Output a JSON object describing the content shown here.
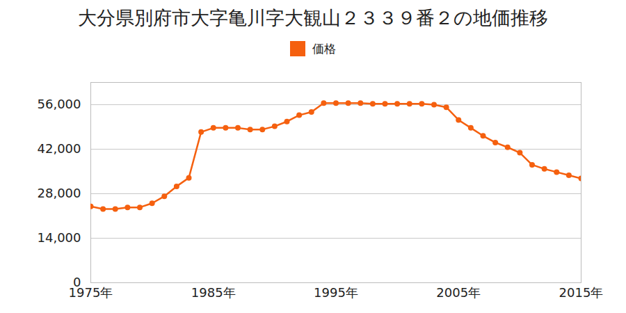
{
  "chart_data": {
    "type": "line",
    "title": "大分県別府市大字亀川字大観山２３３９番２の地価推移",
    "x": [
      1975,
      1976,
      1977,
      1978,
      1979,
      1980,
      1981,
      1982,
      1983,
      1984,
      1985,
      1986,
      1987,
      1988,
      1989,
      1990,
      1991,
      1992,
      1993,
      1994,
      1995,
      1996,
      1997,
      1998,
      1999,
      2000,
      2001,
      2002,
      2003,
      2004,
      2005,
      2006,
      2007,
      2008,
      2009,
      2010,
      2011,
      2012,
      2013,
      2014,
      2015
    ],
    "series": [
      {
        "name": "価格",
        "color": "#f5600f",
        "marker": "circle",
        "values": [
          24000,
          23200,
          23200,
          23700,
          23700,
          25000,
          27200,
          30300,
          33000,
          47400,
          48700,
          48700,
          48700,
          48200,
          48200,
          49200,
          50700,
          52700,
          53700,
          56500,
          56500,
          56500,
          56500,
          56300,
          56300,
          56300,
          56300,
          56300,
          56000,
          55200,
          51200,
          48700,
          46200,
          44100,
          42600,
          40900,
          37100,
          35800,
          34800,
          33800,
          32800
        ]
      }
    ],
    "xlim": [
      1975,
      2015
    ],
    "xticks": [
      {
        "value": 1975,
        "label": "1975年"
      },
      {
        "value": 1985,
        "label": "1985年"
      },
      {
        "value": 1995,
        "label": "1995年"
      },
      {
        "value": 2005,
        "label": "2005年"
      },
      {
        "value": 2015,
        "label": "2015年"
      }
    ],
    "ylim": [
      0,
      63000
    ],
    "yticks": [
      0,
      {
        "value": 14000,
        "label": "14,000"
      },
      {
        "value": 28000,
        "label": "28,000"
      },
      {
        "value": 42000,
        "label": "42,000"
      },
      {
        "value": 56000,
        "label": "56,000"
      }
    ],
    "grid": true,
    "legend": "top"
  }
}
